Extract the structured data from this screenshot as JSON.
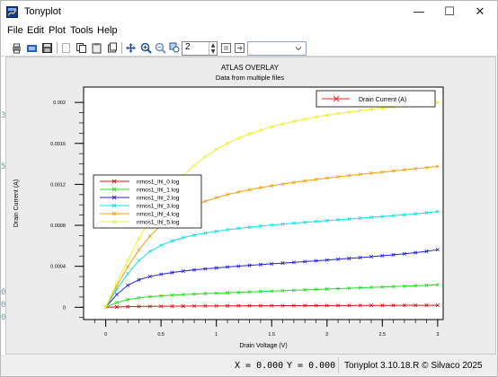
{
  "window": {
    "title": "Tonyplot",
    "controls": {
      "minimize": "—",
      "maximize": "☐",
      "close": "✕"
    },
    "background_peek": [
      "3",
      "5",
      "0",
      "0",
      "0"
    ]
  },
  "menu": {
    "items": [
      "File",
      "Edit",
      "Plot",
      "Tools",
      "Help"
    ]
  },
  "toolbar": {
    "icons": [
      "print-icon",
      "open-icon",
      "save-icon",
      "cut-icon",
      "copy-icon",
      "paste-icon",
      "pan-icon",
      "zoom-in-icon",
      "zoom-out-icon",
      "zoom-box-icon"
    ],
    "zoom_value": "2",
    "extra_icons": [
      "capture-icon",
      "export-icon"
    ],
    "combo_value": ""
  },
  "chart_data": {
    "type": "line",
    "title": "ATLAS OVERLAY",
    "subtitle": "Data from multiple files",
    "xlabel": "Drain Voltage (V)",
    "ylabel": "Drain Current (A)",
    "xlim": [
      -0.2,
      3.05
    ],
    "ylim": [
      -0.00012,
      0.00215
    ],
    "x_ticks": [
      "0",
      "0.5",
      "1",
      "1.5",
      "2",
      "2.5",
      "3"
    ],
    "y_ticks": [
      "0",
      "0.0004",
      "0.0008",
      "0.0012",
      "0.0016",
      "0.002"
    ],
    "top_legend": {
      "label": "Drain Current (A)",
      "color": "#ff2020"
    },
    "x": [
      0,
      0.1,
      0.2,
      0.3,
      0.4,
      0.5,
      0.6,
      0.7,
      0.8,
      0.9,
      1.0,
      1.1,
      1.2,
      1.3,
      1.4,
      1.5,
      1.6,
      1.7,
      1.8,
      1.9,
      2.0,
      2.1,
      2.2,
      2.3,
      2.4,
      2.5,
      2.6,
      2.7,
      2.8,
      2.9,
      3.0
    ],
    "series": [
      {
        "name": "nmos1_lhl_0.log",
        "color": "#e01010",
        "values": [
          0,
          3e-06,
          6e-06,
          8e-06,
          9e-06,
          1e-05,
          1.08e-05,
          1.15e-05,
          1.21e-05,
          1.26e-05,
          1.31e-05,
          1.35e-05,
          1.39e-05,
          1.43e-05,
          1.47e-05,
          1.5e-05,
          1.54e-05,
          1.57e-05,
          1.6e-05,
          1.63e-05,
          1.66e-05,
          1.69e-05,
          1.72e-05,
          1.75e-05,
          1.78e-05,
          1.8e-05,
          1.83e-05,
          1.86e-05,
          1.88e-05,
          1.91e-05,
          1.93e-05
        ]
      },
      {
        "name": "nmos1_lhl_1.log",
        "color": "#20e020",
        "values": [
          0,
          4.5e-05,
          7.5e-05,
          9.2e-05,
          0.000103,
          0.000111,
          0.000118,
          0.000124,
          0.000129,
          0.000134,
          0.000138,
          0.000142,
          0.000146,
          0.00015,
          0.000154,
          0.000158,
          0.000162,
          0.000166,
          0.00017,
          0.000174,
          0.000178,
          0.000182,
          0.000186,
          0.00019,
          0.000194,
          0.000198,
          0.000202,
          0.000206,
          0.00021,
          0.000214,
          0.00022
        ]
      },
      {
        "name": "nmos1_lhl_2.log",
        "color": "#2020e0",
        "values": [
          0,
          0.000125,
          0.000215,
          0.000268,
          0.0003,
          0.000322,
          0.000339,
          0.000353,
          0.000365,
          0.000375,
          0.000384,
          0.000393,
          0.000401,
          0.000409,
          0.000417,
          0.000424,
          0.000431,
          0.000438,
          0.000446,
          0.000453,
          0.000461,
          0.000469,
          0.000477,
          0.000485,
          0.000494,
          0.000503,
          0.000512,
          0.000522,
          0.000533,
          0.000546,
          0.000562
        ]
      },
      {
        "name": "nmos1_lhl_3.log",
        "color": "#10e0e0",
        "values": [
          0,
          0.000175,
          0.00033,
          0.000455,
          0.000545,
          0.000605,
          0.000648,
          0.00068,
          0.000705,
          0.000725,
          0.000742,
          0.000757,
          0.00077,
          0.000782,
          0.000793,
          0.000803,
          0.000812,
          0.000821,
          0.00083,
          0.000838,
          0.000846,
          0.000854,
          0.000862,
          0.00087,
          0.000878,
          0.000886,
          0.000894,
          0.000903,
          0.000912,
          0.000923,
          0.000935
        ]
      },
      {
        "name": "nmos1_lhl_4.log",
        "color": "#f0a010",
        "values": [
          0,
          0.000205,
          0.000395,
          0.00056,
          0.000695,
          0.0008,
          0.00088,
          0.000945,
          0.000995,
          0.001035,
          0.00107,
          0.0011,
          0.001125,
          0.001148,
          0.001168,
          0.001186,
          0.001203,
          0.001219,
          0.001234,
          0.001248,
          0.001261,
          0.001274,
          0.001286,
          0.001298,
          0.001309,
          0.00132,
          0.001331,
          0.001342,
          0.001353,
          0.001364,
          0.001375
        ]
      },
      {
        "name": "nmos1_lhl_5.log",
        "color": "#f0f020",
        "values": [
          0,
          0.000235,
          0.00046,
          0.00067,
          0.00086,
          0.001025,
          0.001165,
          0.001285,
          0.001385,
          0.00147,
          0.00154,
          0.0016,
          0.00165,
          0.001693,
          0.00173,
          0.001762,
          0.00179,
          0.001815,
          0.001837,
          0.001857,
          0.001875,
          0.001891,
          0.001906,
          0.00192,
          0.001933,
          0.001945,
          0.001956,
          0.001966,
          0.001976,
          0.001985,
          0.002
        ]
      }
    ]
  },
  "status": {
    "x_readout": "X = 0.000",
    "y_readout": "Y = 0.000",
    "credit": "Tonyplot 3.10.18.R © Silvaco 2025"
  }
}
